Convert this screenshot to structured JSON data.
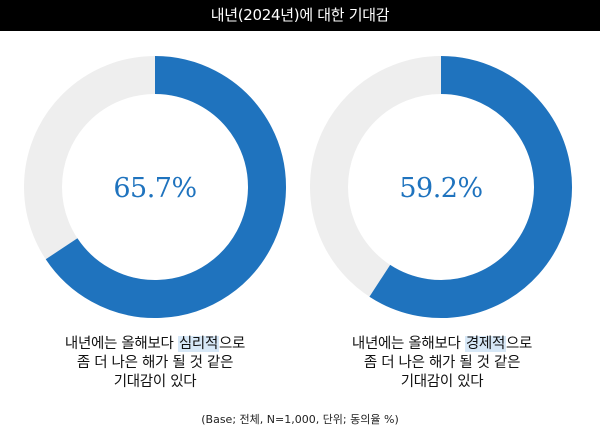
{
  "header": {
    "title": "내년(2024년)에 대한 기대감"
  },
  "chart_data": {
    "type": "pie",
    "title": "내년(2024년)에 대한 기대감",
    "unit": "%",
    "track_color": "#EEEEEE",
    "value_color": "#1F73BE",
    "label_color": "#1F73BE",
    "charts": [
      {
        "value": 65.7,
        "value_label": "65.7%",
        "caption": {
          "line1_pre": "내년에는 올해보다 ",
          "line1_highlight": "심리적",
          "line1_post": "으로",
          "line2": "좀 더 나은 해가 될 것 같은",
          "line3": "기대감이 있다"
        }
      },
      {
        "value": 59.2,
        "value_label": "59.2%",
        "caption": {
          "line1_pre": "내년에는 올해보다 ",
          "line1_highlight": "경제적",
          "line1_post": "으로",
          "line2": "좀 더 나은 해가 될 것 같은",
          "line3": "기대감이 있다"
        }
      }
    ]
  },
  "footnote": "(Base; 전체, N=1,000, 단위; 동의율 %)"
}
